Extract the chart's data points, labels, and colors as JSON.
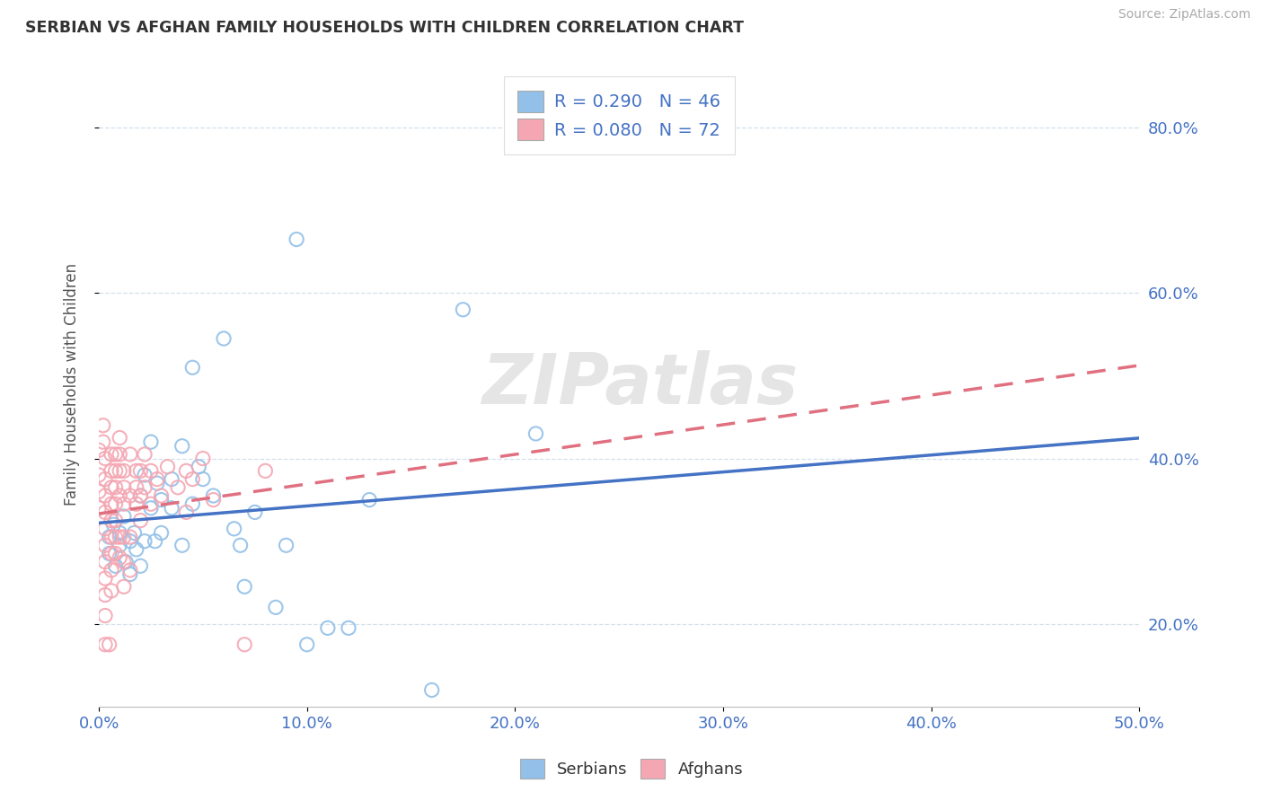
{
  "title": "SERBIAN VS AFGHAN FAMILY HOUSEHOLDS WITH CHILDREN CORRELATION CHART",
  "source": "Source: ZipAtlas.com",
  "xmin": 0.0,
  "xmax": 0.5,
  "ymin": 0.1,
  "ymax": 0.88,
  "serbian_color": "#92c0e8",
  "afghan_color": "#f4a7b3",
  "serbian_line_color": "#4472c4",
  "afghan_line_color": "#e07080",
  "watermark": "ZIPatlas",
  "serbian_scatter": [
    [
      0.005,
      0.305
    ],
    [
      0.005,
      0.285
    ],
    [
      0.007,
      0.32
    ],
    [
      0.008,
      0.27
    ],
    [
      0.01,
      0.31
    ],
    [
      0.01,
      0.295
    ],
    [
      0.012,
      0.33
    ],
    [
      0.013,
      0.275
    ],
    [
      0.015,
      0.3
    ],
    [
      0.015,
      0.26
    ],
    [
      0.017,
      0.31
    ],
    [
      0.018,
      0.29
    ],
    [
      0.02,
      0.355
    ],
    [
      0.02,
      0.27
    ],
    [
      0.022,
      0.38
    ],
    [
      0.022,
      0.3
    ],
    [
      0.025,
      0.42
    ],
    [
      0.025,
      0.34
    ],
    [
      0.027,
      0.3
    ],
    [
      0.028,
      0.37
    ],
    [
      0.03,
      0.35
    ],
    [
      0.03,
      0.31
    ],
    [
      0.035,
      0.375
    ],
    [
      0.035,
      0.34
    ],
    [
      0.04,
      0.415
    ],
    [
      0.04,
      0.295
    ],
    [
      0.045,
      0.345
    ],
    [
      0.045,
      0.51
    ],
    [
      0.048,
      0.39
    ],
    [
      0.05,
      0.375
    ],
    [
      0.055,
      0.355
    ],
    [
      0.06,
      0.545
    ],
    [
      0.065,
      0.315
    ],
    [
      0.068,
      0.295
    ],
    [
      0.07,
      0.245
    ],
    [
      0.075,
      0.335
    ],
    [
      0.085,
      0.22
    ],
    [
      0.09,
      0.295
    ],
    [
      0.095,
      0.665
    ],
    [
      0.1,
      0.175
    ],
    [
      0.11,
      0.195
    ],
    [
      0.12,
      0.195
    ],
    [
      0.13,
      0.35
    ],
    [
      0.16,
      0.12
    ],
    [
      0.175,
      0.58
    ],
    [
      0.21,
      0.43
    ]
  ],
  "afghan_scatter": [
    [
      0.0,
      0.41
    ],
    [
      0.0,
      0.38
    ],
    [
      0.0,
      0.36
    ],
    [
      0.0,
      0.34
    ],
    [
      0.002,
      0.44
    ],
    [
      0.002,
      0.42
    ],
    [
      0.003,
      0.4
    ],
    [
      0.003,
      0.375
    ],
    [
      0.003,
      0.355
    ],
    [
      0.003,
      0.335
    ],
    [
      0.003,
      0.315
    ],
    [
      0.003,
      0.295
    ],
    [
      0.003,
      0.275
    ],
    [
      0.003,
      0.255
    ],
    [
      0.003,
      0.235
    ],
    [
      0.003,
      0.21
    ],
    [
      0.003,
      0.175
    ],
    [
      0.005,
      0.175
    ],
    [
      0.006,
      0.405
    ],
    [
      0.006,
      0.385
    ],
    [
      0.006,
      0.365
    ],
    [
      0.006,
      0.345
    ],
    [
      0.006,
      0.325
    ],
    [
      0.006,
      0.305
    ],
    [
      0.006,
      0.285
    ],
    [
      0.006,
      0.265
    ],
    [
      0.006,
      0.24
    ],
    [
      0.008,
      0.405
    ],
    [
      0.008,
      0.385
    ],
    [
      0.008,
      0.365
    ],
    [
      0.008,
      0.345
    ],
    [
      0.008,
      0.325
    ],
    [
      0.008,
      0.305
    ],
    [
      0.008,
      0.285
    ],
    [
      0.01,
      0.425
    ],
    [
      0.01,
      0.405
    ],
    [
      0.01,
      0.385
    ],
    [
      0.01,
      0.355
    ],
    [
      0.01,
      0.305
    ],
    [
      0.01,
      0.28
    ],
    [
      0.012,
      0.385
    ],
    [
      0.012,
      0.365
    ],
    [
      0.012,
      0.345
    ],
    [
      0.012,
      0.305
    ],
    [
      0.012,
      0.275
    ],
    [
      0.012,
      0.245
    ],
    [
      0.015,
      0.405
    ],
    [
      0.015,
      0.355
    ],
    [
      0.015,
      0.305
    ],
    [
      0.015,
      0.265
    ],
    [
      0.018,
      0.385
    ],
    [
      0.018,
      0.345
    ],
    [
      0.018,
      0.365
    ],
    [
      0.02,
      0.355
    ],
    [
      0.02,
      0.325
    ],
    [
      0.02,
      0.385
    ],
    [
      0.022,
      0.365
    ],
    [
      0.022,
      0.405
    ],
    [
      0.025,
      0.385
    ],
    [
      0.025,
      0.345
    ],
    [
      0.028,
      0.375
    ],
    [
      0.03,
      0.355
    ],
    [
      0.033,
      0.39
    ],
    [
      0.038,
      0.365
    ],
    [
      0.042,
      0.385
    ],
    [
      0.042,
      0.335
    ],
    [
      0.045,
      0.375
    ],
    [
      0.05,
      0.4
    ],
    [
      0.055,
      0.35
    ],
    [
      0.07,
      0.175
    ],
    [
      0.08,
      0.385
    ]
  ]
}
